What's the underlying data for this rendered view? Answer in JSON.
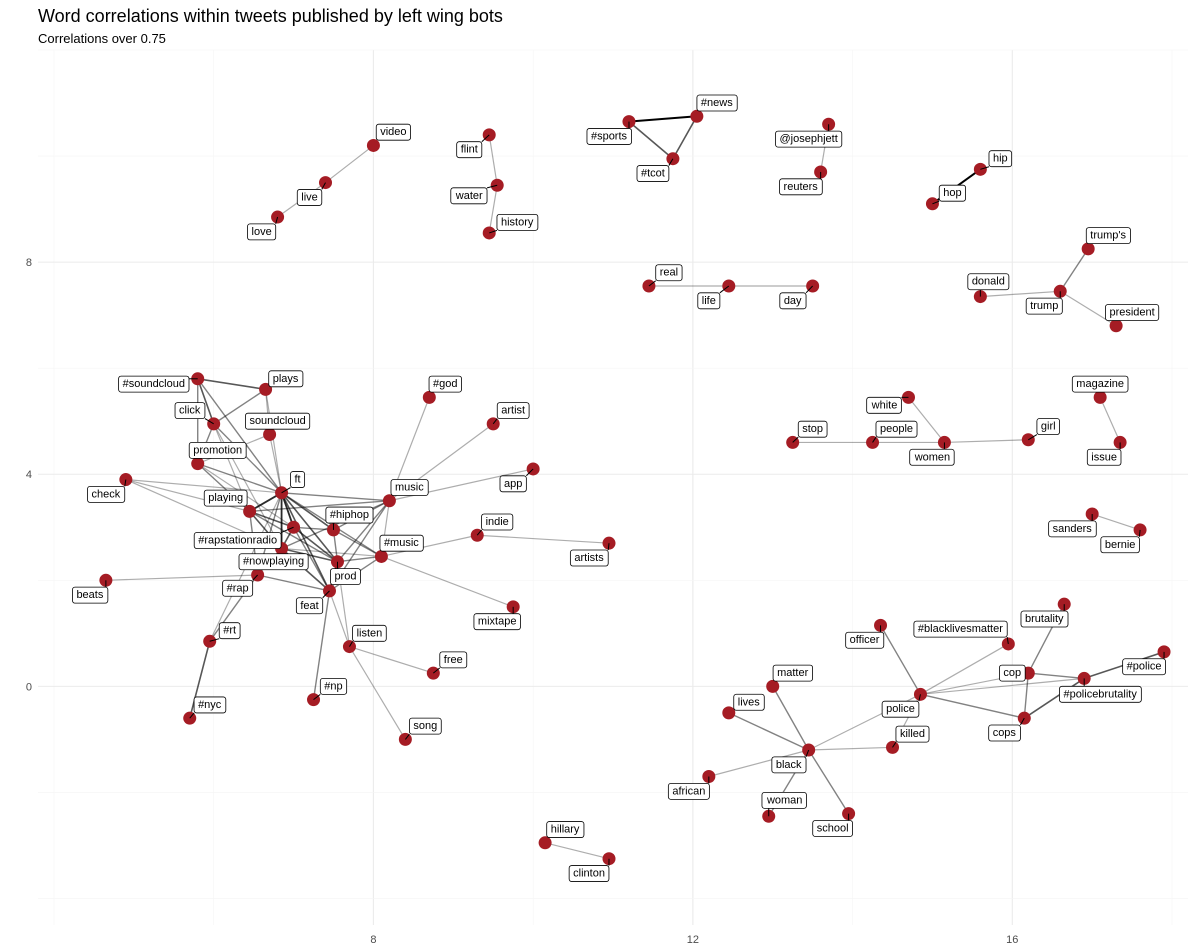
{
  "chart_data": {
    "type": "network",
    "title": "Word correlations within tweets published by left wing bots",
    "subtitle": "Correlations over 0.75",
    "xlim": [
      3.8,
      18.2
    ],
    "ylim": [
      -4.5,
      12.0
    ],
    "x_ticks": [
      8,
      12,
      16
    ],
    "y_ticks": [
      0,
      4,
      8
    ],
    "grid": true,
    "node_color": "#a51c24",
    "nodes": [
      {
        "id": "video",
        "x": 8.0,
        "y": 10.2,
        "lx": 0.25,
        "ly": 0.25
      },
      {
        "id": "live",
        "x": 7.4,
        "y": 9.5,
        "lx": -0.2,
        "ly": -0.28
      },
      {
        "id": "love",
        "x": 6.8,
        "y": 8.85,
        "lx": -0.2,
        "ly": -0.28
      },
      {
        "id": "flint",
        "x": 9.45,
        "y": 10.4,
        "lx": -0.25,
        "ly": -0.28
      },
      {
        "id": "water",
        "x": 9.55,
        "y": 9.45,
        "lx": -0.35,
        "ly": -0.2
      },
      {
        "id": "history",
        "x": 9.45,
        "y": 8.55,
        "lx": 0.35,
        "ly": 0.2
      },
      {
        "id": "#news",
        "x": 12.05,
        "y": 10.75,
        "lx": 0.25,
        "ly": 0.25
      },
      {
        "id": "#sports",
        "x": 11.2,
        "y": 10.65,
        "lx": -0.25,
        "ly": -0.28
      },
      {
        "id": "#tcot",
        "x": 11.75,
        "y": 9.95,
        "lx": -0.25,
        "ly": -0.28
      },
      {
        "id": "@josephjett",
        "x": 13.7,
        "y": 10.6,
        "lx": -0.25,
        "ly": -0.28
      },
      {
        "id": "reuters",
        "x": 13.6,
        "y": 9.7,
        "lx": -0.25,
        "ly": -0.28
      },
      {
        "id": "hip",
        "x": 15.6,
        "y": 9.75,
        "lx": 0.25,
        "ly": 0.2
      },
      {
        "id": "hop",
        "x": 15.0,
        "y": 9.1,
        "lx": 0.25,
        "ly": 0.2
      },
      {
        "id": "trump's",
        "x": 16.95,
        "y": 8.25,
        "lx": 0.25,
        "ly": 0.25
      },
      {
        "id": "donald",
        "x": 15.6,
        "y": 7.35,
        "lx": 0.1,
        "ly": 0.28
      },
      {
        "id": "trump",
        "x": 16.6,
        "y": 7.45,
        "lx": -0.2,
        "ly": -0.28
      },
      {
        "id": "president",
        "x": 17.3,
        "y": 6.8,
        "lx": 0.2,
        "ly": 0.25
      },
      {
        "id": "real",
        "x": 11.45,
        "y": 7.55,
        "lx": 0.25,
        "ly": 0.25
      },
      {
        "id": "life",
        "x": 12.45,
        "y": 7.55,
        "lx": -0.25,
        "ly": -0.28
      },
      {
        "id": "day",
        "x": 13.5,
        "y": 7.55,
        "lx": -0.25,
        "ly": -0.28
      },
      {
        "id": "#soundcloud",
        "x": 5.8,
        "y": 5.8,
        "lx": -0.55,
        "ly": -0.1
      },
      {
        "id": "plays",
        "x": 6.65,
        "y": 5.6,
        "lx": 0.25,
        "ly": 0.2
      },
      {
        "id": "click",
        "x": 6.0,
        "y": 4.95,
        "lx": -0.3,
        "ly": 0.25
      },
      {
        "id": "soundcloud",
        "x": 6.7,
        "y": 4.75,
        "lx": 0.1,
        "ly": 0.25
      },
      {
        "id": "promotion",
        "x": 5.8,
        "y": 4.2,
        "lx": 0.25,
        "ly": 0.25
      },
      {
        "id": "check",
        "x": 4.9,
        "y": 3.9,
        "lx": -0.25,
        "ly": -0.28
      },
      {
        "id": "ft",
        "x": 6.85,
        "y": 3.65,
        "lx": 0.2,
        "ly": 0.25
      },
      {
        "id": "playing",
        "x": 6.45,
        "y": 3.3,
        "lx": -0.3,
        "ly": 0.25
      },
      {
        "id": "#rapstationradio",
        "x": 7.0,
        "y": 3.0,
        "lx": -0.7,
        "ly": -0.25
      },
      {
        "id": "#hiphop",
        "x": 7.5,
        "y": 2.95,
        "lx": 0.2,
        "ly": 0.28
      },
      {
        "id": "music",
        "x": 8.2,
        "y": 3.5,
        "lx": 0.25,
        "ly": 0.25
      },
      {
        "id": "#god",
        "x": 8.7,
        "y": 5.45,
        "lx": 0.2,
        "ly": 0.25
      },
      {
        "id": "artist",
        "x": 9.5,
        "y": 4.95,
        "lx": 0.25,
        "ly": 0.25
      },
      {
        "id": "app",
        "x": 10.0,
        "y": 4.1,
        "lx": -0.25,
        "ly": -0.28
      },
      {
        "id": "indie",
        "x": 9.3,
        "y": 2.85,
        "lx": 0.25,
        "ly": 0.25
      },
      {
        "id": "artists",
        "x": 10.95,
        "y": 2.7,
        "lx": -0.25,
        "ly": -0.28
      },
      {
        "id": "#music",
        "x": 8.1,
        "y": 2.45,
        "lx": 0.25,
        "ly": 0.25
      },
      {
        "id": "#nowplaying",
        "x": 6.85,
        "y": 2.6,
        "lx": -0.1,
        "ly": -0.25
      },
      {
        "id": "prod",
        "x": 7.55,
        "y": 2.35,
        "lx": 0.1,
        "ly": -0.28
      },
      {
        "id": "#rap",
        "x": 6.55,
        "y": 2.1,
        "lx": -0.25,
        "ly": -0.25
      },
      {
        "id": "feat",
        "x": 7.45,
        "y": 1.8,
        "lx": -0.25,
        "ly": -0.28
      },
      {
        "id": "beats",
        "x": 4.65,
        "y": 2.0,
        "lx": -0.2,
        "ly": -0.28
      },
      {
        "id": "mixtape",
        "x": 9.75,
        "y": 1.5,
        "lx": -0.2,
        "ly": -0.28
      },
      {
        "id": "#rt",
        "x": 5.95,
        "y": 0.85,
        "lx": 0.25,
        "ly": 0.2
      },
      {
        "id": "listen",
        "x": 7.7,
        "y": 0.75,
        "lx": 0.25,
        "ly": 0.25
      },
      {
        "id": "free",
        "x": 8.75,
        "y": 0.25,
        "lx": 0.25,
        "ly": 0.25
      },
      {
        "id": "#np",
        "x": 7.25,
        "y": -0.25,
        "lx": 0.25,
        "ly": 0.25
      },
      {
        "id": "#nyc",
        "x": 5.7,
        "y": -0.6,
        "lx": 0.25,
        "ly": 0.25
      },
      {
        "id": "song",
        "x": 8.4,
        "y": -1.0,
        "lx": 0.25,
        "ly": 0.25
      },
      {
        "id": "hillary",
        "x": 10.15,
        "y": -2.95,
        "lx": 0.25,
        "ly": 0.25
      },
      {
        "id": "clinton",
        "x": 10.95,
        "y": -3.25,
        "lx": -0.25,
        "ly": -0.28
      },
      {
        "id": "stop",
        "x": 13.25,
        "y": 4.6,
        "lx": 0.25,
        "ly": 0.25
      },
      {
        "id": "people",
        "x": 14.25,
        "y": 4.6,
        "lx": 0.3,
        "ly": 0.25
      },
      {
        "id": "white",
        "x": 14.7,
        "y": 5.45,
        "lx": -0.3,
        "ly": -0.15
      },
      {
        "id": "women",
        "x": 15.15,
        "y": 4.6,
        "lx": -0.15,
        "ly": -0.28
      },
      {
        "id": "girl",
        "x": 16.2,
        "y": 4.65,
        "lx": 0.25,
        "ly": 0.25
      },
      {
        "id": "magazine",
        "x": 17.1,
        "y": 5.45,
        "lx": 0.0,
        "ly": 0.25
      },
      {
        "id": "issue",
        "x": 17.35,
        "y": 4.6,
        "lx": -0.2,
        "ly": -0.28
      },
      {
        "id": "sanders",
        "x": 17.0,
        "y": 3.25,
        "lx": -0.25,
        "ly": -0.28
      },
      {
        "id": "bernie",
        "x": 17.6,
        "y": 2.95,
        "lx": -0.25,
        "ly": -0.28
      },
      {
        "id": "brutality",
        "x": 16.65,
        "y": 1.55,
        "lx": -0.25,
        "ly": -0.28
      },
      {
        "id": "officer",
        "x": 14.35,
        "y": 1.15,
        "lx": -0.2,
        "ly": -0.28
      },
      {
        "id": "#blacklivesmatter",
        "x": 15.95,
        "y": 0.8,
        "lx": -0.6,
        "ly": 0.28
      },
      {
        "id": "cop",
        "x": 16.2,
        "y": 0.25,
        "lx": -0.2,
        "ly": 0.0
      },
      {
        "id": "#policebrutality",
        "x": 16.9,
        "y": 0.15,
        "lx": 0.2,
        "ly": -0.3
      },
      {
        "id": "#police",
        "x": 17.9,
        "y": 0.65,
        "lx": -0.25,
        "ly": -0.28
      },
      {
        "id": "matter",
        "x": 13.0,
        "y": 0.0,
        "lx": 0.25,
        "ly": 0.25
      },
      {
        "id": "police",
        "x": 14.85,
        "y": -0.15,
        "lx": -0.25,
        "ly": -0.28
      },
      {
        "id": "cops",
        "x": 16.15,
        "y": -0.6,
        "lx": -0.25,
        "ly": -0.28
      },
      {
        "id": "lives",
        "x": 12.45,
        "y": -0.5,
        "lx": 0.25,
        "ly": 0.2
      },
      {
        "id": "black",
        "x": 13.45,
        "y": -1.2,
        "lx": -0.25,
        "ly": -0.28
      },
      {
        "id": "killed",
        "x": 14.5,
        "y": -1.15,
        "lx": 0.25,
        "ly": 0.25
      },
      {
        "id": "african",
        "x": 12.2,
        "y": -1.7,
        "lx": -0.25,
        "ly": -0.28
      },
      {
        "id": "woman",
        "x": 12.95,
        "y": -2.45,
        "lx": 0.2,
        "ly": 0.3
      },
      {
        "id": "school",
        "x": 13.95,
        "y": -2.4,
        "lx": -0.2,
        "ly": -0.28
      }
    ],
    "edges": [
      {
        "from": "live",
        "to": "video",
        "w": 0.8
      },
      {
        "from": "live",
        "to": "love",
        "w": 0.8
      },
      {
        "from": "flint",
        "to": "water",
        "w": 0.8
      },
      {
        "from": "water",
        "to": "history",
        "w": 0.8
      },
      {
        "from": "#news",
        "to": "#sports",
        "w": 1.0
      },
      {
        "from": "#news",
        "to": "#tcot",
        "w": 0.9
      },
      {
        "from": "#sports",
        "to": "#tcot",
        "w": 0.9
      },
      {
        "from": "@josephjett",
        "to": "reuters",
        "w": 0.8
      },
      {
        "from": "hip",
        "to": "hop",
        "w": 1.0
      },
      {
        "from": "trump",
        "to": "trump's",
        "w": 0.85
      },
      {
        "from": "trump",
        "to": "donald",
        "w": 0.8
      },
      {
        "from": "trump",
        "to": "president",
        "w": 0.8
      },
      {
        "from": "real",
        "to": "life",
        "w": 0.8
      },
      {
        "from": "life",
        "to": "day",
        "w": 0.8
      },
      {
        "from": "#soundcloud",
        "to": "plays",
        "w": 0.9
      },
      {
        "from": "#soundcloud",
        "to": "click",
        "w": 0.9
      },
      {
        "from": "#soundcloud",
        "to": "promotion",
        "w": 0.85
      },
      {
        "from": "#soundcloud",
        "to": "ft",
        "w": 0.85
      },
      {
        "from": "plays",
        "to": "click",
        "w": 0.85
      },
      {
        "from": "plays",
        "to": "ft",
        "w": 0.8
      },
      {
        "from": "plays",
        "to": "soundcloud",
        "w": 0.8
      },
      {
        "from": "click",
        "to": "promotion",
        "w": 0.85
      },
      {
        "from": "click",
        "to": "ft",
        "w": 0.85
      },
      {
        "from": "click",
        "to": "playing",
        "w": 0.8
      },
      {
        "from": "click",
        "to": "#nowplaying",
        "w": 0.8
      },
      {
        "from": "soundcloud",
        "to": "ft",
        "w": 0.8
      },
      {
        "from": "soundcloud",
        "to": "promotion",
        "w": 0.8
      },
      {
        "from": "promotion",
        "to": "ft",
        "w": 0.85
      },
      {
        "from": "promotion",
        "to": "playing",
        "w": 0.85
      },
      {
        "from": "promotion",
        "to": "#rapstationradio",
        "w": 0.8
      },
      {
        "from": "check",
        "to": "ft",
        "w": 0.8
      },
      {
        "from": "check",
        "to": "playing",
        "w": 0.8
      },
      {
        "from": "check",
        "to": "#nowplaying",
        "w": 0.8
      },
      {
        "from": "ft",
        "to": "playing",
        "w": 0.95
      },
      {
        "from": "ft",
        "to": "#rapstationradio",
        "w": 0.95
      },
      {
        "from": "ft",
        "to": "#hiphop",
        "w": 0.9
      },
      {
        "from": "ft",
        "to": "music",
        "w": 0.85
      },
      {
        "from": "ft",
        "to": "#nowplaying",
        "w": 0.95
      },
      {
        "from": "ft",
        "to": "prod",
        "w": 0.9
      },
      {
        "from": "ft",
        "to": "feat",
        "w": 0.9
      },
      {
        "from": "ft",
        "to": "#music",
        "w": 0.85
      },
      {
        "from": "ft",
        "to": "#rap",
        "w": 0.85
      },
      {
        "from": "playing",
        "to": "#rapstationradio",
        "w": 0.9
      },
      {
        "from": "playing",
        "to": "#nowplaying",
        "w": 0.9
      },
      {
        "from": "playing",
        "to": "prod",
        "w": 0.85
      },
      {
        "from": "playing",
        "to": "#rap",
        "w": 0.85
      },
      {
        "from": "playing",
        "to": "music",
        "w": 0.85
      },
      {
        "from": "#rapstationradio",
        "to": "#nowplaying",
        "w": 0.9
      },
      {
        "from": "#rapstationradio",
        "to": "prod",
        "w": 0.9
      },
      {
        "from": "#rapstationradio",
        "to": "feat",
        "w": 0.85
      },
      {
        "from": "#rapstationradio",
        "to": "#hiphop",
        "w": 0.85
      },
      {
        "from": "#hiphop",
        "to": "music",
        "w": 0.85
      },
      {
        "from": "#hiphop",
        "to": "prod",
        "w": 0.85
      },
      {
        "from": "#hiphop",
        "to": "#music",
        "w": 0.85
      },
      {
        "from": "music",
        "to": "#god",
        "w": 0.8
      },
      {
        "from": "music",
        "to": "artist",
        "w": 0.8
      },
      {
        "from": "music",
        "to": "app",
        "w": 0.8
      },
      {
        "from": "music",
        "to": "prod",
        "w": 0.85
      },
      {
        "from": "music",
        "to": "#nowplaying",
        "w": 0.85
      },
      {
        "from": "music",
        "to": "feat",
        "w": 0.85
      },
      {
        "from": "music",
        "to": "#music",
        "w": 0.8
      },
      {
        "from": "#music",
        "to": "indie",
        "w": 0.8
      },
      {
        "from": "#music",
        "to": "prod",
        "w": 0.85
      },
      {
        "from": "#music",
        "to": "feat",
        "w": 0.85
      },
      {
        "from": "#music",
        "to": "mixtape",
        "w": 0.8
      },
      {
        "from": "#music",
        "to": "#nowplaying",
        "w": 0.8
      },
      {
        "from": "indie",
        "to": "artists",
        "w": 0.8
      },
      {
        "from": "#nowplaying",
        "to": "prod",
        "w": 0.9
      },
      {
        "from": "#nowplaying",
        "to": "#rap",
        "w": 0.85
      },
      {
        "from": "#nowplaying",
        "to": "feat",
        "w": 0.9
      },
      {
        "from": "prod",
        "to": "feat",
        "w": 0.95
      },
      {
        "from": "prod",
        "to": "listen",
        "w": 0.8
      },
      {
        "from": "feat",
        "to": "#rap",
        "w": 0.85
      },
      {
        "from": "feat",
        "to": "listen",
        "w": 0.8
      },
      {
        "from": "feat",
        "to": "#np",
        "w": 0.85
      },
      {
        "from": "#rap",
        "to": "#rt",
        "w": 0.85
      },
      {
        "from": "#rap",
        "to": "beats",
        "w": 0.8
      },
      {
        "from": "#rt",
        "to": "#nyc",
        "w": 0.9
      },
      {
        "from": "#rt",
        "to": "ft",
        "w": 0.8
      },
      {
        "from": "listen",
        "to": "free",
        "w": 0.8
      },
      {
        "from": "listen",
        "to": "song",
        "w": 0.8
      },
      {
        "from": "hillary",
        "to": "clinton",
        "w": 0.8
      },
      {
        "from": "stop",
        "to": "people",
        "w": 0.8
      },
      {
        "from": "people",
        "to": "women",
        "w": 0.8
      },
      {
        "from": "white",
        "to": "women",
        "w": 0.8
      },
      {
        "from": "women",
        "to": "girl",
        "w": 0.8
      },
      {
        "from": "magazine",
        "to": "issue",
        "w": 0.8
      },
      {
        "from": "sanders",
        "to": "bernie",
        "w": 0.8
      },
      {
        "from": "brutality",
        "to": "cop",
        "w": 0.85
      },
      {
        "from": "cop",
        "to": "#policebrutality",
        "w": 0.85
      },
      {
        "from": "cop",
        "to": "cops",
        "w": 0.85
      },
      {
        "from": "cop",
        "to": "police",
        "w": 0.8
      },
      {
        "from": "#blacklivesmatter",
        "to": "police",
        "w": 0.8
      },
      {
        "from": "#policebrutality",
        "to": "#police",
        "w": 0.9
      },
      {
        "from": "#policebrutality",
        "to": "cops",
        "w": 0.9
      },
      {
        "from": "police",
        "to": "officer",
        "w": 0.85
      },
      {
        "from": "police",
        "to": "cops",
        "w": 0.85
      },
      {
        "from": "police",
        "to": "#policebrutality",
        "w": 0.8
      },
      {
        "from": "police",
        "to": "black",
        "w": 0.8
      },
      {
        "from": "police",
        "to": "killed",
        "w": 0.8
      },
      {
        "from": "black",
        "to": "matter",
        "w": 0.85
      },
      {
        "from": "black",
        "to": "lives",
        "w": 0.85
      },
      {
        "from": "black",
        "to": "african",
        "w": 0.8
      },
      {
        "from": "black",
        "to": "woman",
        "w": 0.85
      },
      {
        "from": "black",
        "to": "school",
        "w": 0.85
      },
      {
        "from": "black",
        "to": "killed",
        "w": 0.8
      }
    ]
  }
}
